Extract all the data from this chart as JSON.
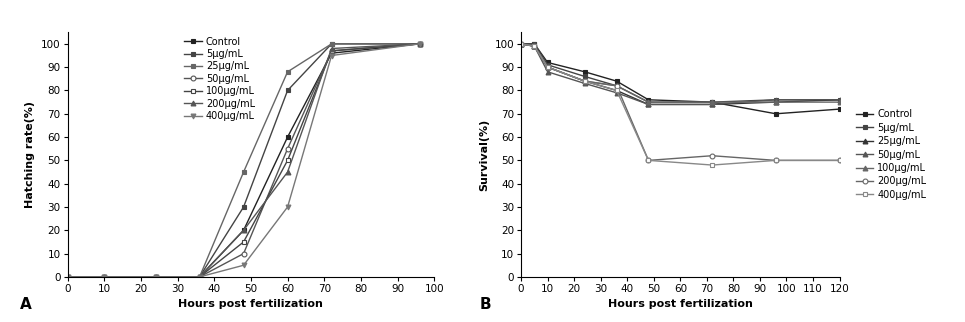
{
  "panel_A": {
    "xlabel": "Hours post fertilization",
    "ylabel": "Hatching rate(%)",
    "label": "A",
    "xlim": [
      0,
      100
    ],
    "ylim": [
      0,
      105
    ],
    "xticks": [
      0,
      10,
      20,
      30,
      40,
      50,
      60,
      70,
      80,
      90,
      100
    ],
    "yticks": [
      0,
      10,
      20,
      30,
      40,
      50,
      60,
      70,
      80,
      90,
      100
    ],
    "series": [
      {
        "label": "Control",
        "marker": "s",
        "mfc": "#222222",
        "color": "#222222",
        "x": [
          0,
          10,
          24,
          36,
          48,
          60,
          72,
          96
        ],
        "y": [
          0,
          0,
          0,
          0,
          20,
          60,
          96,
          100
        ]
      },
      {
        "label": "5μg/mL",
        "marker": "s",
        "mfc": "#444444",
        "color": "#444444",
        "x": [
          0,
          10,
          24,
          36,
          48,
          60,
          72,
          96
        ],
        "y": [
          0,
          0,
          0,
          0,
          30,
          80,
          100,
          100
        ]
      },
      {
        "label": "25μg/mL",
        "marker": "s",
        "mfc": "#666666",
        "color": "#666666",
        "x": [
          0,
          10,
          24,
          36,
          48,
          60,
          72,
          96
        ],
        "y": [
          0,
          0,
          0,
          0,
          45,
          88,
          100,
          100
        ]
      },
      {
        "label": "50μg/mL",
        "marker": "o",
        "mfc": "white",
        "color": "#555555",
        "x": [
          0,
          10,
          24,
          36,
          48,
          60,
          72,
          96
        ],
        "y": [
          0,
          0,
          0,
          0,
          10,
          55,
          97,
          100
        ]
      },
      {
        "label": "100μg/mL",
        "marker": "s",
        "mfc": "white",
        "color": "#444444",
        "x": [
          0,
          10,
          24,
          36,
          48,
          60,
          72,
          96
        ],
        "y": [
          0,
          0,
          0,
          0,
          15,
          50,
          97,
          100
        ]
      },
      {
        "label": "200μg/mL",
        "marker": "^",
        "mfc": "#555555",
        "color": "#555555",
        "x": [
          0,
          10,
          24,
          36,
          48,
          60,
          72,
          96
        ],
        "y": [
          0,
          0,
          0,
          0,
          20,
          45,
          98,
          100
        ]
      },
      {
        "label": "400μg/mL",
        "marker": "v",
        "mfc": "#777777",
        "color": "#777777",
        "x": [
          0,
          10,
          24,
          36,
          48,
          60,
          72,
          96
        ],
        "y": [
          0,
          0,
          0,
          0,
          5,
          30,
          95,
          100
        ]
      }
    ]
  },
  "panel_B": {
    "xlabel": "Hours post fertilization",
    "ylabel": "Survival(%)",
    "label": "B",
    "xlim": [
      0,
      120
    ],
    "ylim": [
      0,
      105
    ],
    "xticks": [
      0,
      10,
      20,
      30,
      40,
      50,
      60,
      70,
      80,
      90,
      100,
      110,
      120
    ],
    "yticks": [
      0,
      10,
      20,
      30,
      40,
      50,
      60,
      70,
      80,
      90,
      100
    ],
    "series": [
      {
        "label": "Control",
        "marker": "s",
        "mfc": "#222222",
        "color": "#222222",
        "x": [
          0,
          5,
          10,
          24,
          36,
          48,
          72,
          96,
          120
        ],
        "y": [
          100,
          100,
          92,
          88,
          84,
          76,
          75,
          70,
          72
        ]
      },
      {
        "label": "5μg/mL",
        "marker": "s",
        "mfc": "#444444",
        "color": "#444444",
        "x": [
          0,
          5,
          10,
          24,
          36,
          48,
          72,
          96,
          120
        ],
        "y": [
          100,
          100,
          91,
          86,
          82,
          75,
          75,
          76,
          76
        ]
      },
      {
        "label": "25μg/mL",
        "marker": "^",
        "mfc": "#333333",
        "color": "#333333",
        "x": [
          0,
          5,
          10,
          24,
          36,
          48,
          72,
          96,
          120
        ],
        "y": [
          100,
          99,
          90,
          84,
          80,
          74,
          74,
          75,
          76
        ]
      },
      {
        "label": "50μg/mL",
        "marker": "^",
        "mfc": "#555555",
        "color": "#555555",
        "x": [
          0,
          5,
          10,
          24,
          36,
          48,
          72,
          96,
          120
        ],
        "y": [
          100,
          99,
          88,
          83,
          79,
          74,
          74,
          76,
          76
        ]
      },
      {
        "label": "100μg/mL",
        "marker": "^",
        "mfc": "#666666",
        "color": "#666666",
        "x": [
          0,
          5,
          10,
          24,
          36,
          48,
          72,
          96,
          120
        ],
        "y": [
          100,
          99,
          90,
          84,
          82,
          75,
          75,
          75,
          75
        ]
      },
      {
        "label": "200μg/mL",
        "marker": "o",
        "mfc": "white",
        "color": "#666666",
        "x": [
          0,
          5,
          10,
          24,
          36,
          48,
          72,
          96,
          120
        ],
        "y": [
          100,
          99,
          90,
          84,
          82,
          50,
          52,
          50,
          50
        ]
      },
      {
        "label": "400μg/mL",
        "marker": "s",
        "mfc": "white",
        "color": "#888888",
        "x": [
          0,
          5,
          10,
          24,
          36,
          48,
          72,
          96,
          120
        ],
        "y": [
          100,
          99,
          90,
          84,
          80,
          50,
          48,
          50,
          50
        ]
      }
    ]
  }
}
